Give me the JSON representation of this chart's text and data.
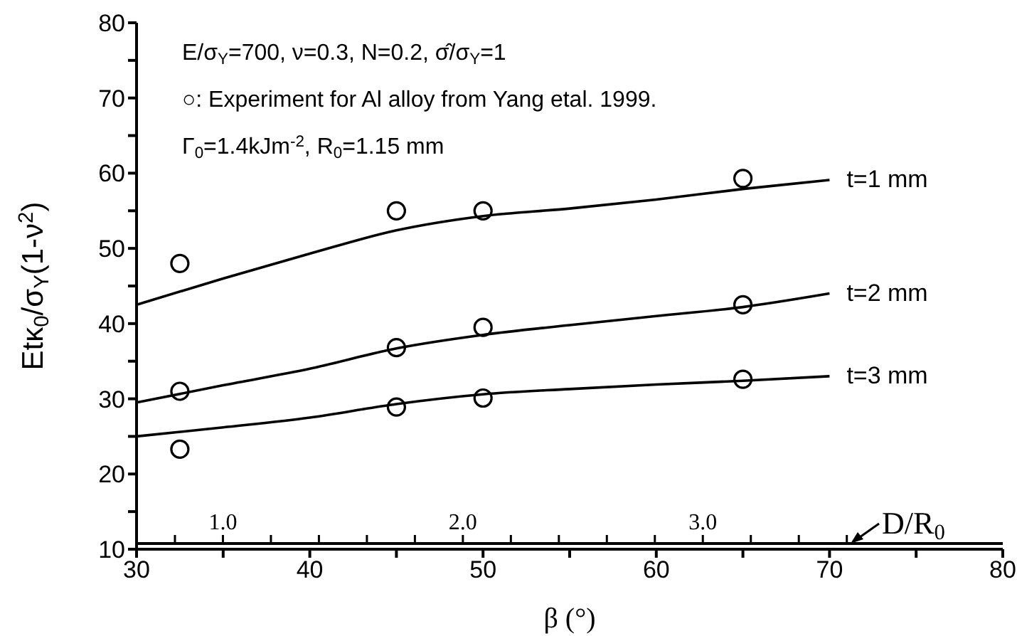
{
  "chart_data": {
    "type": "line",
    "xlabel": "β (°)",
    "ylabel": "Etκ$_{0}$/σ$_{Y}$(1-ν$^{2}$)",
    "x2label": "D/R$_{0}$",
    "annotations": [
      "E/σ$_{Y}$=700, ν=0.3, N=0.2, σ̂/σ$_{Y}$=1",
      "○: Experiment for Al alloy from Yang etal. 1999.",
      "Γ$_{0}$=1.4kJm$^{-2}$, R$_{0}$=1.15 mm"
    ],
    "xlim": [
      30,
      80
    ],
    "xticks": [
      30,
      {
        "value": 35,
        "label": null
      },
      40,
      {
        "value": 45,
        "label": null
      },
      50,
      {
        "value": 55,
        "label": null
      },
      60,
      {
        "value": 65,
        "label": null
      },
      70,
      {
        "value": 75,
        "label": null
      },
      80
    ],
    "ylim": [
      10,
      80
    ],
    "yticks": [
      10,
      {
        "value": 15,
        "label": null
      },
      20,
      {
        "value": 25,
        "label": null
      },
      30,
      {
        "value": 35,
        "label": null
      },
      40,
      {
        "value": 45,
        "label": null
      },
      50,
      {
        "value": 55,
        "label": null
      },
      60,
      {
        "value": 65,
        "label": null
      },
      70,
      {
        "value": 75,
        "label": null
      },
      80
    ],
    "x2lim": [
      0.64,
      4.25
    ],
    "x2ticks": [
      {
        "value": 0.8,
        "label": null
      },
      {
        "value": 1.0,
        "label": "1.0"
      },
      {
        "value": 1.2,
        "label": null
      },
      {
        "value": 1.4,
        "label": null
      },
      {
        "value": 1.6,
        "label": null
      },
      {
        "value": 1.8,
        "label": null
      },
      {
        "value": 2.0,
        "label": "2.0"
      },
      {
        "value": 2.2,
        "label": null
      },
      {
        "value": 2.4,
        "label": null
      },
      {
        "value": 2.6,
        "label": null
      },
      {
        "value": 2.8,
        "label": null
      },
      {
        "value": 3.0,
        "label": "3.0"
      },
      {
        "value": 3.2,
        "label": null
      },
      {
        "value": 3.4,
        "label": null
      },
      {
        "value": 3.6,
        "label": null
      }
    ],
    "grid": false,
    "legend": false,
    "line_style": "solid",
    "series": [
      {
        "name": "t=1 mm",
        "type": "line",
        "marker": "none",
        "color": "#000000",
        "x": [
          30,
          35,
          40,
          45,
          50,
          55,
          60,
          65,
          70
        ],
        "values": [
          42.5,
          46,
          49.3,
          52.4,
          54.3,
          55.3,
          56.5,
          57.9,
          59.1
        ]
      },
      {
        "name": "t=2 mm",
        "type": "line",
        "marker": "none",
        "color": "#000000",
        "x": [
          30,
          35,
          40,
          45,
          50,
          55,
          60,
          65,
          70
        ],
        "values": [
          29.5,
          31.8,
          34,
          36.7,
          38.5,
          39.8,
          41,
          42.2,
          44
        ]
      },
      {
        "name": "t=3 mm",
        "type": "line",
        "marker": "none",
        "color": "#000000",
        "x": [
          30,
          35,
          40,
          45,
          50,
          55,
          60,
          65,
          70
        ],
        "values": [
          25,
          26.2,
          27.5,
          29.3,
          30.6,
          31.3,
          31.9,
          32.4,
          33
        ]
      },
      {
        "type": "scatter",
        "marker": "circle",
        "color": "#000000",
        "x": [
          32.5,
          45,
          50,
          65,
          32.5,
          45,
          50,
          65,
          32.5,
          45,
          50,
          65
        ],
        "values": [
          48,
          55,
          55,
          59.3,
          31,
          36.8,
          39.5,
          42.5,
          23.3,
          28.9,
          30.1,
          32.6
        ]
      }
    ]
  }
}
